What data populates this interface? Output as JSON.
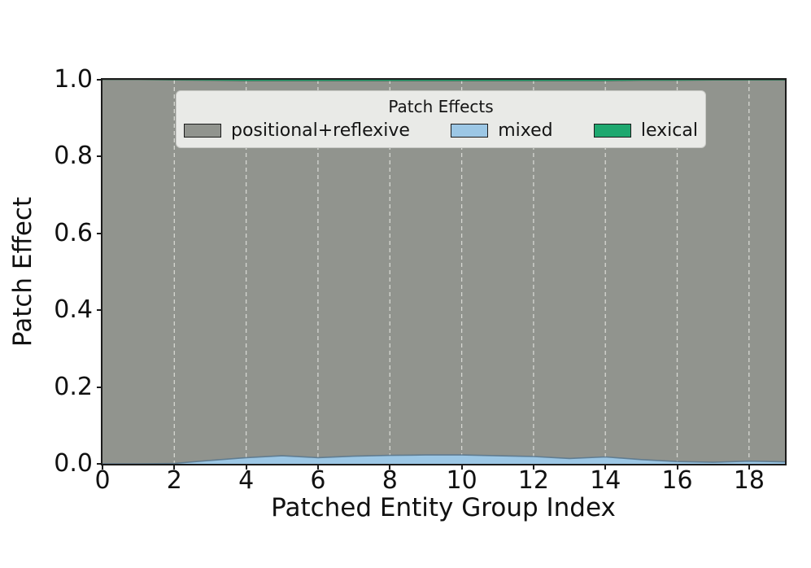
{
  "chart_data": {
    "type": "area",
    "stacked": true,
    "xlabel": "Patched Entity Group Index",
    "ylabel": "Patch Effect",
    "xlim": [
      0,
      19
    ],
    "ylim": [
      0,
      1
    ],
    "grid": {
      "axis": "x",
      "style": "dashed",
      "color": "#d6d7d2"
    },
    "x": [
      0,
      1,
      2,
      3,
      4,
      5,
      6,
      7,
      8,
      9,
      10,
      11,
      12,
      13,
      14,
      15,
      16,
      17,
      18,
      19
    ],
    "series": [
      {
        "name": "positional+reflexive",
        "color": "#91948e",
        "values": [
          1.0,
          1.0,
          0.998,
          0.989,
          0.981,
          0.976,
          0.981,
          0.977,
          0.975,
          0.974,
          0.974,
          0.976,
          0.978,
          0.983,
          0.979,
          0.987,
          0.992,
          0.995,
          0.992,
          0.994
        ]
      },
      {
        "name": "mixed",
        "color": "#9cc7e5",
        "values": [
          0.0,
          0.0,
          0.001,
          0.009,
          0.016,
          0.021,
          0.016,
          0.02,
          0.022,
          0.023,
          0.023,
          0.021,
          0.019,
          0.014,
          0.018,
          0.011,
          0.006,
          0.004,
          0.007,
          0.005
        ]
      },
      {
        "name": "lexical",
        "color": "#1ea86f",
        "values": [
          0.0,
          0.0,
          0.001,
          0.002,
          0.003,
          0.003,
          0.003,
          0.003,
          0.003,
          0.003,
          0.003,
          0.003,
          0.003,
          0.003,
          0.003,
          0.002,
          0.002,
          0.001,
          0.001,
          0.001
        ]
      }
    ],
    "x_ticks": [
      {
        "value": 0,
        "label": "0"
      },
      {
        "value": 2,
        "label": "2"
      },
      {
        "value": 4,
        "label": "4"
      },
      {
        "value": 6,
        "label": "6"
      },
      {
        "value": 8,
        "label": "8"
      },
      {
        "value": 10,
        "label": "10"
      },
      {
        "value": 12,
        "label": "12"
      },
      {
        "value": 14,
        "label": "14"
      },
      {
        "value": 16,
        "label": "16"
      },
      {
        "value": 18,
        "label": "18"
      }
    ],
    "y_ticks": [
      {
        "value": 0.0,
        "label": "0.0"
      },
      {
        "value": 0.2,
        "label": "0.2"
      },
      {
        "value": 0.4,
        "label": "0.4"
      },
      {
        "value": 0.6,
        "label": "0.6"
      },
      {
        "value": 0.8,
        "label": "0.8"
      },
      {
        "value": 1.0,
        "label": "1.0"
      }
    ],
    "legend": {
      "title": "Patch Effects",
      "position": "upper center",
      "entries": [
        {
          "label": "positional+reflexive",
          "color": "#91948e"
        },
        {
          "label": "mixed",
          "color": "#9cc7e5"
        },
        {
          "label": "lexical",
          "color": "#1ea86f"
        }
      ]
    }
  }
}
